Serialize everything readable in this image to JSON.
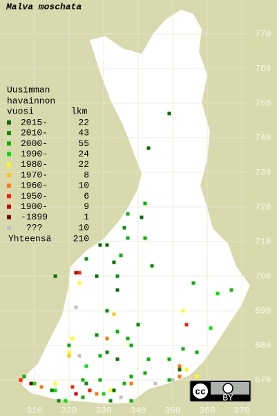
{
  "title": "Malva moschata",
  "legend": {
    "header": [
      "Uusimman",
      "havainnon",
      "vuosi"
    ],
    "count_header": "lkm",
    "rows": [
      {
        "label": "2015-",
        "count": 22,
        "color": "#006f00",
        "squares": [
          [
            349,
            747
          ],
          [
            343,
            737
          ],
          [
            341,
            717
          ],
          [
            331,
            709
          ],
          [
            333,
            704
          ],
          [
            329,
            709
          ],
          [
            316,
            700
          ],
          [
            328,
            700
          ],
          [
            334,
            696
          ],
          [
            334,
            676
          ],
          [
            352,
            673
          ],
          [
            333,
            667
          ]
        ]
      },
      {
        "label": "2010-",
        "count": 43,
        "color": "#009000",
        "squares": [
          [
            334,
            700
          ],
          [
            344,
            703
          ],
          [
            331,
            690
          ],
          [
            340,
            686
          ],
          [
            325,
            705
          ],
          [
            336,
            714
          ],
          [
            328,
            683
          ],
          [
            331,
            678
          ],
          [
            325,
            669
          ],
          [
            315,
            667
          ],
          [
            317,
            664
          ],
          [
            332,
            664
          ]
        ]
      },
      {
        "label": "2000-",
        "count": 55,
        "color": "#00b400",
        "squares": [
          [
            342,
            721
          ],
          [
            342,
            711
          ],
          [
            337,
            711
          ],
          [
            335,
            706
          ],
          [
            337,
            718
          ],
          [
            356,
            698
          ],
          [
            367,
            696
          ],
          [
            338,
            680
          ],
          [
            337,
            682
          ],
          [
            334,
            684
          ],
          [
            353,
            679
          ],
          [
            357,
            678
          ],
          [
            349,
            676
          ],
          [
            343,
            676
          ],
          [
            320,
            680
          ],
          [
            329,
            677
          ],
          [
            349,
            670
          ],
          [
            338,
            671
          ],
          [
            342,
            672
          ],
          [
            324,
            670
          ],
          [
            329,
            670
          ],
          [
            336,
            669
          ],
          [
            312,
            668
          ],
          [
            324,
            665
          ],
          [
            338,
            664
          ],
          [
            307,
            671
          ]
        ]
      },
      {
        "label": "1990-",
        "count": 24,
        "color": "#00e000",
        "squares": [
          [
            363,
            695
          ],
          [
            361,
            685
          ],
          [
            310,
            669
          ],
          [
            316,
            667
          ],
          [
            319,
            664
          ],
          [
            330,
            666
          ],
          [
            325,
            674
          ]
        ]
      },
      {
        "label": "1980-",
        "count": 22,
        "color": "#ffff00",
        "squares": [
          [
            323,
            698
          ],
          [
            353,
            690
          ],
          [
            321,
            682
          ],
          [
            320,
            678
          ],
          [
            354,
            673
          ],
          [
            357,
            671
          ],
          [
            316,
            669
          ],
          [
            332,
            667
          ]
        ]
      },
      {
        "label": "1970-",
        "count": 8,
        "color": "#ffc800",
        "squares": [
          [
            333,
            689
          ],
          [
            320,
            677
          ]
        ]
      },
      {
        "label": "1960-",
        "count": 10,
        "color": "#ff7800",
        "squares": [
          [
            331,
            682
          ],
          [
            312,
            668
          ],
          [
            352,
            674
          ],
          [
            352,
            671
          ],
          [
            338,
            669
          ],
          [
            328,
            666
          ]
        ]
      },
      {
        "label": "1950-",
        "count": 6,
        "color": "#ff1e00",
        "squares": [
          [
            323,
            701
          ],
          [
            354,
            686
          ],
          [
            306,
            670
          ],
          [
            321,
            668
          ],
          [
            326,
            667
          ]
        ]
      },
      {
        "label": "1900-",
        "count": 9,
        "color": "#c80000",
        "squares": [
          [
            322,
            701
          ],
          [
            322,
            666
          ]
        ]
      },
      {
        "label": "-1899",
        "count": 1,
        "color": "#7a0000",
        "squares": [
          [
            309,
            669
          ]
        ]
      },
      {
        "label": "???",
        "count": 10,
        "color": "#c0c0c0",
        "squares": [
          [
            322,
            691
          ],
          [
            323,
            677
          ],
          [
            345,
            669
          ],
          [
            350,
            670
          ],
          [
            335,
            665
          ]
        ]
      }
    ],
    "total_label": "Yhteensä",
    "total": 210
  },
  "xticks": [
    310,
    320,
    330,
    340,
    350,
    360,
    370
  ],
  "yticks": [
    670,
    680,
    690,
    700,
    710,
    720,
    730,
    740,
    750,
    760,
    770
  ],
  "license": {
    "cc": "cc",
    "by": "BY"
  }
}
